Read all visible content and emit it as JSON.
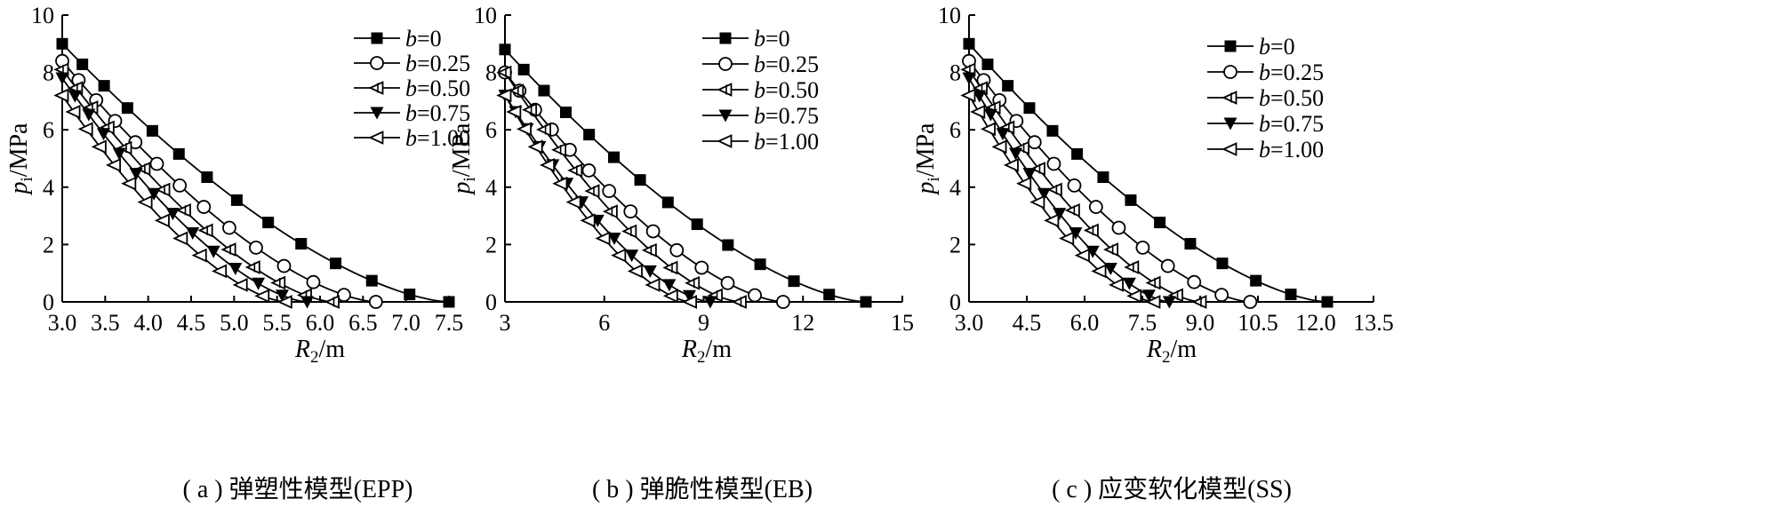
{
  "figure": {
    "background": "#ffffff",
    "ink": "#000000"
  },
  "chart_data": [
    {
      "type": "line",
      "caption": "( a ) 弹塑性模型(EPP)",
      "xlabel": "R2/m",
      "ylabel": "pi/MPa",
      "xlim": [
        3.0,
        7.5
      ],
      "ylim": [
        0,
        10
      ],
      "xticks": [
        3.0,
        3.5,
        4.0,
        4.5,
        5.0,
        5.5,
        6.0,
        6.5,
        7.0,
        7.5
      ],
      "xtick_labels": [
        "3.0",
        "3.5",
        "4.0",
        "4.5",
        "5.0",
        "5.5",
        "6.0",
        "6.5",
        "7.0",
        "7.5"
      ],
      "yticks": [
        0,
        2,
        4,
        6,
        8,
        10
      ],
      "ytick_labels": [
        "0",
        "2",
        "4",
        "6",
        "8",
        "10"
      ],
      "legend_position": "top-right",
      "series": [
        {
          "name": "b=0",
          "marker": "filled-square",
          "x0": 3.0,
          "x1": 7.5,
          "p0": 9.0
        },
        {
          "name": "b=0.25",
          "marker": "open-circle",
          "x0": 3.0,
          "x1": 6.65,
          "p0": 8.4
        },
        {
          "name": "b=0.50",
          "marker": "open-triangle-left-cross",
          "x0": 3.0,
          "x1": 6.15,
          "p0": 8.1
        },
        {
          "name": "b=0.75",
          "marker": "filled-triangle-down",
          "x0": 3.0,
          "x1": 5.85,
          "p0": 7.8
        },
        {
          "name": "b=1.00",
          "marker": "open-triangle-left",
          "x0": 3.0,
          "x1": 5.6,
          "p0": 7.2
        }
      ]
    },
    {
      "type": "line",
      "caption": "( b ) 弹脆性模型(EB)",
      "xlabel": "R2/m",
      "ylabel": "pi/MPa",
      "xlim": [
        3,
        15
      ],
      "ylim": [
        0,
        10
      ],
      "xticks": [
        3,
        6,
        9,
        12,
        15
      ],
      "xtick_labels": [
        "3",
        "6",
        "9",
        "12",
        "15"
      ],
      "yticks": [
        0,
        2,
        4,
        6,
        8,
        10
      ],
      "ytick_labels": [
        "0",
        "2",
        "4",
        "6",
        "8",
        "10"
      ],
      "legend_position": "top-right",
      "series": [
        {
          "name": "b=0",
          "marker": "filled-square",
          "x0": 3.0,
          "x1": 13.9,
          "p0": 8.8
        },
        {
          "name": "b=0.25",
          "marker": "open-circle",
          "x0": 3.0,
          "x1": 11.4,
          "p0": 8.0
        },
        {
          "name": "b=0.50",
          "marker": "open-triangle-left-cross",
          "x0": 3.0,
          "x1": 10.1,
          "p0": 8.0
        },
        {
          "name": "b=0.75",
          "marker": "filled-triangle-down",
          "x0": 3.0,
          "x1": 9.2,
          "p0": 7.2
        },
        {
          "name": "b=1.00",
          "marker": "open-triangle-left",
          "x0": 3.0,
          "x1": 8.6,
          "p0": 7.2
        }
      ]
    },
    {
      "type": "line",
      "caption": "( c ) 应变软化模型(SS)",
      "xlabel": "R2/m",
      "ylabel": "pi/MPa",
      "xlim": [
        3.0,
        13.5
      ],
      "ylim": [
        0,
        10
      ],
      "xticks": [
        3.0,
        4.5,
        6.0,
        7.5,
        9.0,
        10.5,
        12.0,
        13.5
      ],
      "xtick_labels": [
        "3.0",
        "4.5",
        "6.0",
        "7.5",
        "9.0",
        "10.5",
        "12.0",
        "13.5"
      ],
      "yticks": [
        0,
        2,
        4,
        6,
        8,
        10
      ],
      "ytick_labels": [
        "0",
        "2",
        "4",
        "6",
        "8",
        "10"
      ],
      "legend_position": "top-right",
      "series": [
        {
          "name": "b=0",
          "marker": "filled-square",
          "x0": 3.0,
          "x1": 12.3,
          "p0": 9.0
        },
        {
          "name": "b=0.25",
          "marker": "open-circle",
          "x0": 3.0,
          "x1": 10.3,
          "p0": 8.4
        },
        {
          "name": "b=0.50",
          "marker": "open-triangle-left-cross",
          "x0": 3.0,
          "x1": 9.0,
          "p0": 8.1
        },
        {
          "name": "b=0.75",
          "marker": "filled-triangle-down",
          "x0": 3.0,
          "x1": 8.2,
          "p0": 7.8
        },
        {
          "name": "b=1.00",
          "marker": "open-triangle-left",
          "x0": 3.0,
          "x1": 7.8,
          "p0": 7.2
        }
      ]
    }
  ]
}
